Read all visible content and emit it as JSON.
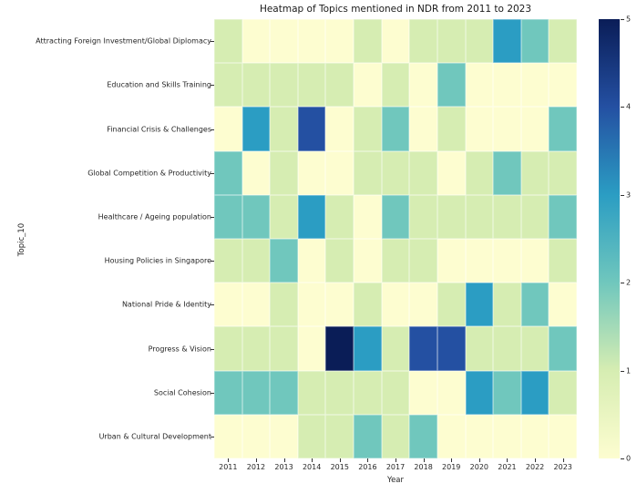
{
  "title": "Heatmap of Topics mentioned in NDR from 2011 to 2023",
  "chart_data": {
    "type": "heatmap",
    "title": "Heatmap of Topics mentioned in NDR from 2011 to 2023",
    "xlabel": "Year",
    "ylabel": "Topic_10",
    "columns": [
      "2011",
      "2012",
      "2013",
      "2014",
      "2015",
      "2016",
      "2017",
      "2018",
      "2019",
      "2020",
      "2021",
      "2022",
      "2023"
    ],
    "rows": [
      "Attracting Foreign Investment/Global Diplomacy",
      "Education and Skills Training",
      "Financial Crisis & Challenges",
      "Global Competition & Productivity",
      "Healthcare / Ageing population",
      "Housing Policies in Singapore",
      "National Pride & Identity",
      "Progress & Vision",
      "Social Cohesion",
      "Urban & Cultural Development"
    ],
    "values": [
      [
        1,
        0,
        0,
        0,
        0,
        1,
        0,
        1,
        1,
        1,
        3,
        2,
        1
      ],
      [
        1,
        1,
        1,
        1,
        1,
        0,
        1,
        0,
        2,
        0,
        0,
        0,
        0
      ],
      [
        0,
        3,
        1,
        4,
        0,
        1,
        2,
        0,
        1,
        0,
        0,
        0,
        2
      ],
      [
        2,
        0,
        1,
        0,
        0,
        1,
        1,
        1,
        0,
        1,
        2,
        1,
        1
      ],
      [
        2,
        2,
        1,
        3,
        1,
        0,
        2,
        1,
        1,
        1,
        1,
        1,
        2
      ],
      [
        1,
        1,
        2,
        0,
        1,
        0,
        1,
        1,
        0,
        0,
        0,
        0,
        1
      ],
      [
        0,
        0,
        1,
        0,
        0,
        1,
        0,
        0,
        1,
        3,
        1,
        2,
        0
      ],
      [
        1,
        1,
        1,
        0,
        5,
        3,
        1,
        4,
        4,
        1,
        1,
        1,
        2
      ],
      [
        2,
        2,
        2,
        1,
        1,
        1,
        1,
        0,
        0,
        3,
        2,
        3,
        1
      ],
      [
        0,
        0,
        0,
        1,
        1,
        2,
        1,
        2,
        0,
        0,
        0,
        0,
        0
      ]
    ],
    "vmin": 0,
    "vmax": 5,
    "colorbar_ticks": [
      "0",
      "1",
      "2",
      "3",
      "4",
      "5"
    ],
    "colormap": {
      "name": "YlGnBu",
      "value_colors": [
        "#fdfdd0",
        "#d6edb2",
        "#70c7bd",
        "#2b9dc3",
        "#2450a2",
        "#0a1d57"
      ]
    },
    "legend_position": "colorbar-right",
    "grid": false
  }
}
